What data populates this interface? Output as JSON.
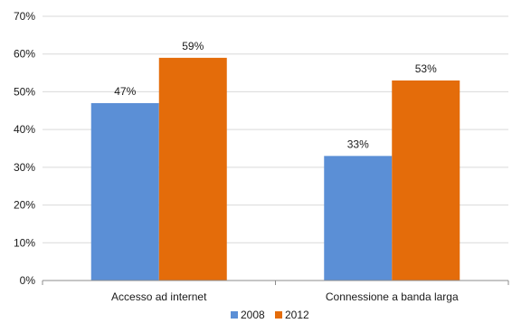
{
  "chart_data": {
    "type": "bar",
    "categories": [
      "Accesso ad internet",
      "Connessione a banda larga"
    ],
    "series": [
      {
        "name": "2008",
        "values": [
          47,
          33
        ],
        "color": "#5b8fd6"
      },
      {
        "name": "2012",
        "values": [
          59,
          53
        ],
        "color": "#e46c0a"
      }
    ],
    "data_labels": [
      [
        "47%",
        "33%"
      ],
      [
        "59%",
        "53%"
      ]
    ],
    "ylim": [
      0,
      70
    ],
    "yticks": [
      0,
      10,
      20,
      30,
      40,
      50,
      60,
      70
    ],
    "ytick_labels": [
      "0%",
      "10%",
      "20%",
      "30%",
      "40%",
      "50%",
      "60%",
      "70%"
    ],
    "grid": true,
    "legend_position": "bottom-center",
    "grid_color": "#d9d9d9",
    "axis_color": "#8c8c8c"
  }
}
